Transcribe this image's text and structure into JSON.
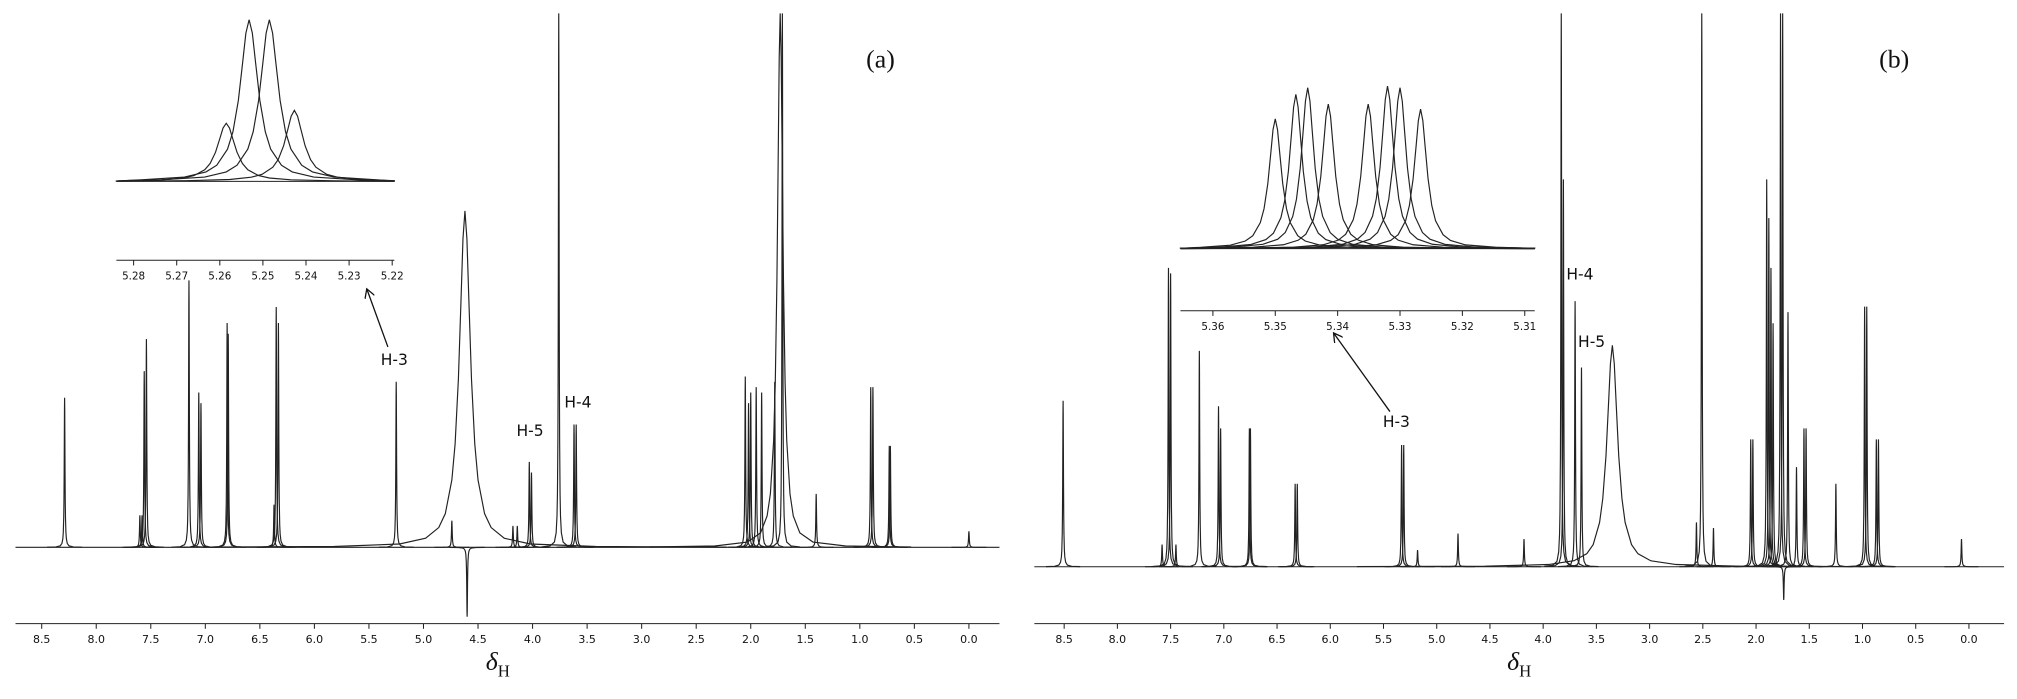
{
  "chart_data": [
    {
      "type": "spectrum",
      "panel_label": "(a)",
      "xlabel_symbol": "δ",
      "xlabel_subscript": "H",
      "xlim": [
        8.74,
        -0.28
      ],
      "ylim": [
        0,
        100
      ],
      "xticks": [
        8.5,
        {
          "value": 8,
          "label": "8.0"
        },
        7.5,
        {
          "value": 7,
          "label": "7.0"
        },
        6.5,
        {
          "value": 6,
          "label": "6.0"
        },
        5.5,
        {
          "value": 5,
          "label": "5.0"
        },
        4.5,
        {
          "value": 4,
          "label": "4.0"
        },
        3.5,
        {
          "value": 3,
          "label": "3.0"
        },
        2.5,
        {
          "value": 2,
          "label": "2.0"
        },
        1.5,
        {
          "value": 1,
          "label": "1.0"
        },
        0.5,
        {
          "value": 0,
          "label": "0.0"
        }
      ],
      "peaks": [
        {
          "ppm": 8.29,
          "height": 28
        },
        {
          "ppm": 7.6,
          "height": 6
        },
        {
          "ppm": 7.58,
          "height": 6
        },
        {
          "ppm": 7.56,
          "height": 33
        },
        {
          "ppm": 7.54,
          "height": 39
        },
        {
          "ppm": 7.15,
          "height": 50
        },
        {
          "ppm": 7.06,
          "height": 29
        },
        {
          "ppm": 7.04,
          "height": 27
        },
        {
          "ppm": 6.8,
          "height": 42
        },
        {
          "ppm": 6.79,
          "height": 40
        },
        {
          "ppm": 6.37,
          "height": 8
        },
        {
          "ppm": 6.35,
          "height": 45
        },
        {
          "ppm": 6.33,
          "height": 42
        },
        {
          "ppm": 5.25,
          "height": 31
        },
        {
          "ppm": 4.74,
          "height": 5
        },
        {
          "ppm": 4.62,
          "height": 63,
          "width": 0.06
        },
        {
          "ppm": 4.6,
          "height": -13
        },
        {
          "ppm": 4.18,
          "height": 4
        },
        {
          "ppm": 4.14,
          "height": 4
        },
        {
          "ppm": 4.03,
          "height": 16
        },
        {
          "ppm": 4.01,
          "height": 14
        },
        {
          "ppm": 3.76,
          "height": 100
        },
        {
          "ppm": 3.62,
          "height": 23
        },
        {
          "ppm": 3.6,
          "height": 23
        },
        {
          "ppm": 2.05,
          "height": 32
        },
        {
          "ppm": 2.02,
          "height": 27
        },
        {
          "ppm": 2.0,
          "height": 29
        },
        {
          "ppm": 1.95,
          "height": 30
        },
        {
          "ppm": 1.9,
          "height": 29
        },
        {
          "ppm": 1.78,
          "height": 31
        },
        {
          "ppm": 1.73,
          "height": 100,
          "width": 0.03
        },
        {
          "ppm": 1.71,
          "height": 100
        },
        {
          "ppm": 1.4,
          "height": 10
        },
        {
          "ppm": 0.9,
          "height": 30
        },
        {
          "ppm": 0.88,
          "height": 30
        },
        {
          "ppm": 0.73,
          "height": 19
        },
        {
          "ppm": 0.72,
          "height": 19
        },
        {
          "ppm": 0.0,
          "height": 3
        }
      ],
      "inset": {
        "xlim": [
          5.284,
          5.2195
        ],
        "ylim": [
          0,
          100
        ],
        "xticks": [
          5.28,
          5.27,
          5.26,
          5.25,
          5.24,
          5.23,
          5.22
        ],
        "peaks": [
          {
            "ppm": 5.2585,
            "height": 36,
            "width": 0.0025
          },
          {
            "ppm": 5.2532,
            "height": 100,
            "width": 0.0025
          },
          {
            "ppm": 5.2485,
            "height": 100,
            "width": 0.0025
          },
          {
            "ppm": 5.2427,
            "height": 44,
            "width": 0.0025
          }
        ]
      },
      "annotations": [
        {
          "text": "H-3"
        },
        {
          "text": "H-5"
        },
        {
          "text": "H-4"
        }
      ]
    },
    {
      "type": "spectrum",
      "panel_label": "(b)",
      "xlabel_symbol": "δ",
      "xlabel_subscript": "H",
      "xlim": [
        8.78,
        -0.33
      ],
      "ylim": [
        0,
        100
      ],
      "xticks": [
        8.5,
        {
          "value": 8,
          "label": "8.0"
        },
        7.5,
        {
          "value": 7,
          "label": "7.0"
        },
        6.5,
        {
          "value": 6,
          "label": "6.0"
        },
        5.5,
        {
          "value": 5,
          "label": "5.0"
        },
        4.5,
        {
          "value": 4,
          "label": "4.0"
        },
        3.5,
        {
          "value": 3,
          "label": "3.0"
        },
        2.5,
        {
          "value": 2,
          "label": "2.0"
        },
        1.5,
        {
          "value": 1,
          "label": "1.0"
        },
        0.5,
        {
          "value": 0,
          "label": "0.0"
        }
      ],
      "peaks": [
        {
          "ppm": 8.51,
          "height": 30
        },
        {
          "ppm": 7.58,
          "height": 4
        },
        {
          "ppm": 7.52,
          "height": 54
        },
        {
          "ppm": 7.5,
          "height": 53
        },
        {
          "ppm": 7.45,
          "height": 4
        },
        {
          "ppm": 7.23,
          "height": 39
        },
        {
          "ppm": 7.05,
          "height": 29
        },
        {
          "ppm": 7.03,
          "height": 25
        },
        {
          "ppm": 6.76,
          "height": 25
        },
        {
          "ppm": 6.75,
          "height": 25
        },
        {
          "ppm": 6.33,
          "height": 15
        },
        {
          "ppm": 6.31,
          "height": 15
        },
        {
          "ppm": 5.33,
          "height": 22
        },
        {
          "ppm": 5.31,
          "height": 22
        },
        {
          "ppm": 5.18,
          "height": 3
        },
        {
          "ppm": 4.8,
          "height": 6
        },
        {
          "ppm": 4.18,
          "height": 5
        },
        {
          "ppm": 3.83,
          "height": 100
        },
        {
          "ppm": 3.81,
          "height": 70
        },
        {
          "ppm": 3.7,
          "height": 48
        },
        {
          "ppm": 3.64,
          "height": 36
        },
        {
          "ppm": 3.35,
          "height": 40,
          "width": 0.06
        },
        {
          "ppm": 2.56,
          "height": 8
        },
        {
          "ppm": 2.51,
          "height": 100
        },
        {
          "ppm": 2.4,
          "height": 7
        },
        {
          "ppm": 2.05,
          "height": 23
        },
        {
          "ppm": 2.03,
          "height": 23
        },
        {
          "ppm": 1.9,
          "height": 70
        },
        {
          "ppm": 1.88,
          "height": 63
        },
        {
          "ppm": 1.86,
          "height": 54
        },
        {
          "ppm": 1.84,
          "height": 44
        },
        {
          "ppm": 1.77,
          "height": 100
        },
        {
          "ppm": 1.75,
          "height": 100
        },
        {
          "ppm": 1.74,
          "height": -6
        },
        {
          "ppm": 1.7,
          "height": 46
        },
        {
          "ppm": 1.62,
          "height": 18
        },
        {
          "ppm": 1.55,
          "height": 25
        },
        {
          "ppm": 1.53,
          "height": 25
        },
        {
          "ppm": 1.25,
          "height": 15
        },
        {
          "ppm": 0.98,
          "height": 47
        },
        {
          "ppm": 0.96,
          "height": 47
        },
        {
          "ppm": 0.87,
          "height": 23
        },
        {
          "ppm": 0.85,
          "height": 23
        },
        {
          "ppm": 0.07,
          "height": 5
        }
      ],
      "inset": {
        "xlim": [
          5.3652,
          5.3084
        ],
        "ylim": [
          0,
          100
        ],
        "xticks": [
          5.36,
          5.35,
          5.34,
          5.33,
          5.32,
          5.31
        ],
        "peaks": [
          {
            "ppm": 5.35,
            "height": 79,
            "width": 0.0012
          },
          {
            "ppm": 5.3467,
            "height": 94,
            "width": 0.0012
          },
          {
            "ppm": 5.3448,
            "height": 98,
            "width": 0.0012
          },
          {
            "ppm": 5.3415,
            "height": 88,
            "width": 0.0012
          },
          {
            "ppm": 5.3351,
            "height": 88,
            "width": 0.0012
          },
          {
            "ppm": 5.332,
            "height": 99,
            "width": 0.0012
          },
          {
            "ppm": 5.33,
            "height": 98,
            "width": 0.0012
          },
          {
            "ppm": 5.3267,
            "height": 85,
            "width": 0.0012
          }
        ]
      },
      "annotations": [
        {
          "text": "H-4"
        },
        {
          "text": "H-5"
        },
        {
          "text": "H-3"
        }
      ]
    }
  ]
}
